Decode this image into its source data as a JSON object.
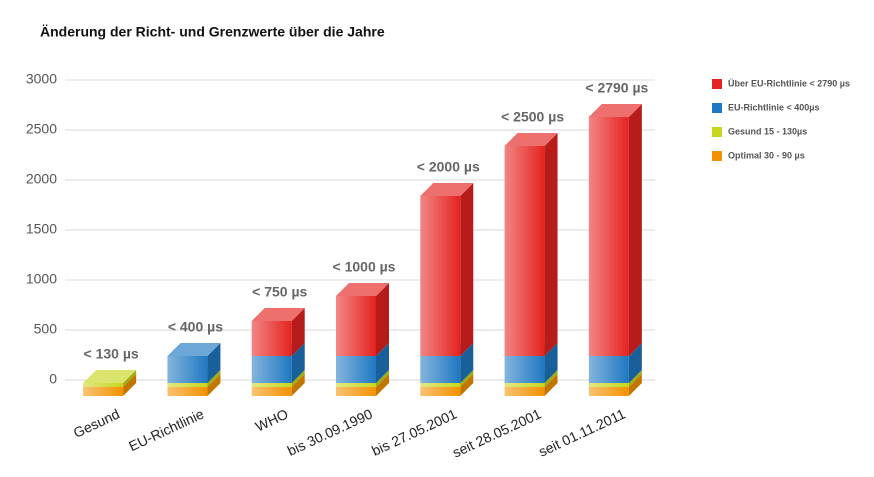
{
  "chart_data": {
    "type": "bar3d-stacked",
    "title": "Änderung der Richt- und Grenzwerte über die Jahre",
    "categories": [
      "Gesund",
      "EU-Richtlinie",
      "WHO",
      "bis 30.09.1990",
      "bis 27.05.2001",
      "seit 28.05.2001",
      "seit 01.11.2011"
    ],
    "series": [
      {
        "name": "Optimal 30 - 90 µs",
        "color": "#f39200",
        "values": [
          90,
          90,
          90,
          90,
          90,
          90,
          90
        ]
      },
      {
        "name": "Gesund 15 - 130µs",
        "color": "#c8d61e",
        "values": [
          40,
          40,
          40,
          40,
          40,
          40,
          40
        ]
      },
      {
        "name": "EU-Richtlinie < 400µs",
        "color": "#1f78c1",
        "values": [
          0,
          270,
          270,
          270,
          270,
          270,
          270
        ]
      },
      {
        "name": "Über EU-Richtlinie < 2790 µs",
        "color": "#e52320",
        "values": [
          0,
          0,
          350,
          600,
          1600,
          2100,
          2390
        ]
      }
    ],
    "totals": [
      130,
      400,
      750,
      1000,
      2000,
      2500,
      2790
    ],
    "total_labels": [
      "< 130  µs",
      "< 400  µs",
      "< 750  µs",
      "< 1000  µs",
      "< 2000  µs",
      "< 2500  µs",
      "< 2790  µs"
    ],
    "ylim": [
      0,
      3000
    ],
    "yticks": [
      0,
      500,
      1000,
      1500,
      2000,
      2500,
      3000
    ],
    "grid": true
  }
}
